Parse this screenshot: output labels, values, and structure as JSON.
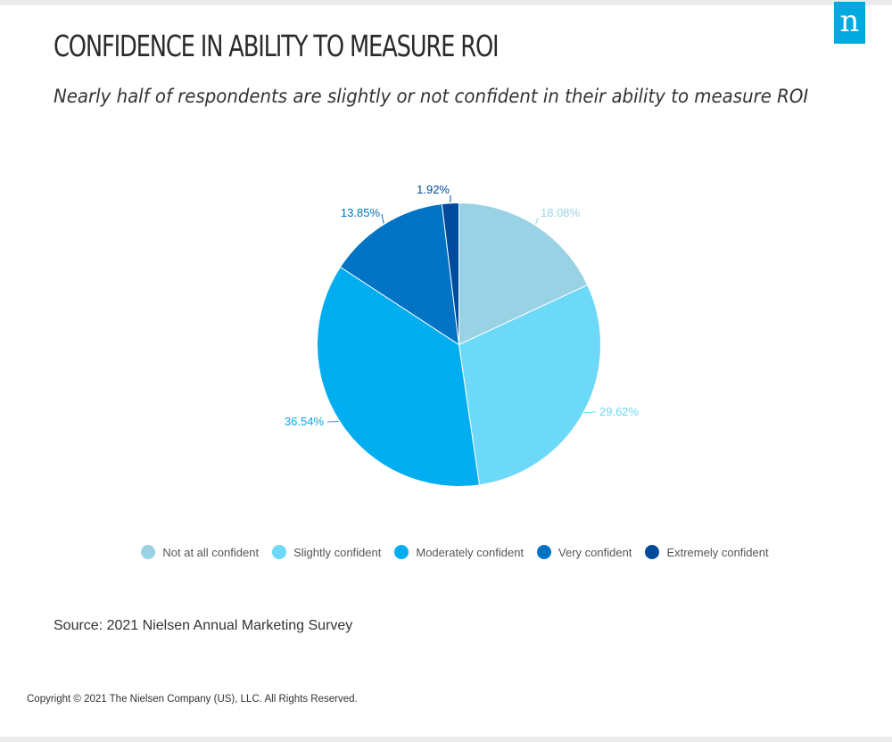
{
  "brand": {
    "logo_letter": "n",
    "logo_color": "#00a9e0"
  },
  "header": {
    "title": "CONFIDENCE IN ABILITY TO MEASURE ROI",
    "subtitle": "Nearly half of respondents are slightly or not confident in their ability to measure ROI"
  },
  "chart_data": {
    "type": "pie",
    "title": "CONFIDENCE IN ABILITY TO MEASURE ROI",
    "subtitle": "Nearly half of respondents are slightly or not confident in their ability to measure ROI",
    "legend_placement": "bottom",
    "slices": [
      {
        "name": "Not at all confident",
        "value": 18.08,
        "label": "18.08%",
        "color": "#99d2e5"
      },
      {
        "name": "Slightly confident",
        "value": 29.62,
        "label": "29.62%",
        "color": "#6bd9f7"
      },
      {
        "name": "Moderately confident",
        "value": 36.54,
        "label": "36.54%",
        "color": "#00aeef"
      },
      {
        "name": "Very confident",
        "value": 13.85,
        "label": "13.85%",
        "color": "#0073c4"
      },
      {
        "name": "Extremely confident",
        "value": 1.92,
        "label": "1.92%",
        "color": "#004b9c"
      }
    ]
  },
  "footer": {
    "source": "Source: 2021 Nielsen Annual Marketing Survey",
    "copyright": "Copyright © 2021 The Nielsen Company (US), LLC. All Rights Reserved."
  }
}
